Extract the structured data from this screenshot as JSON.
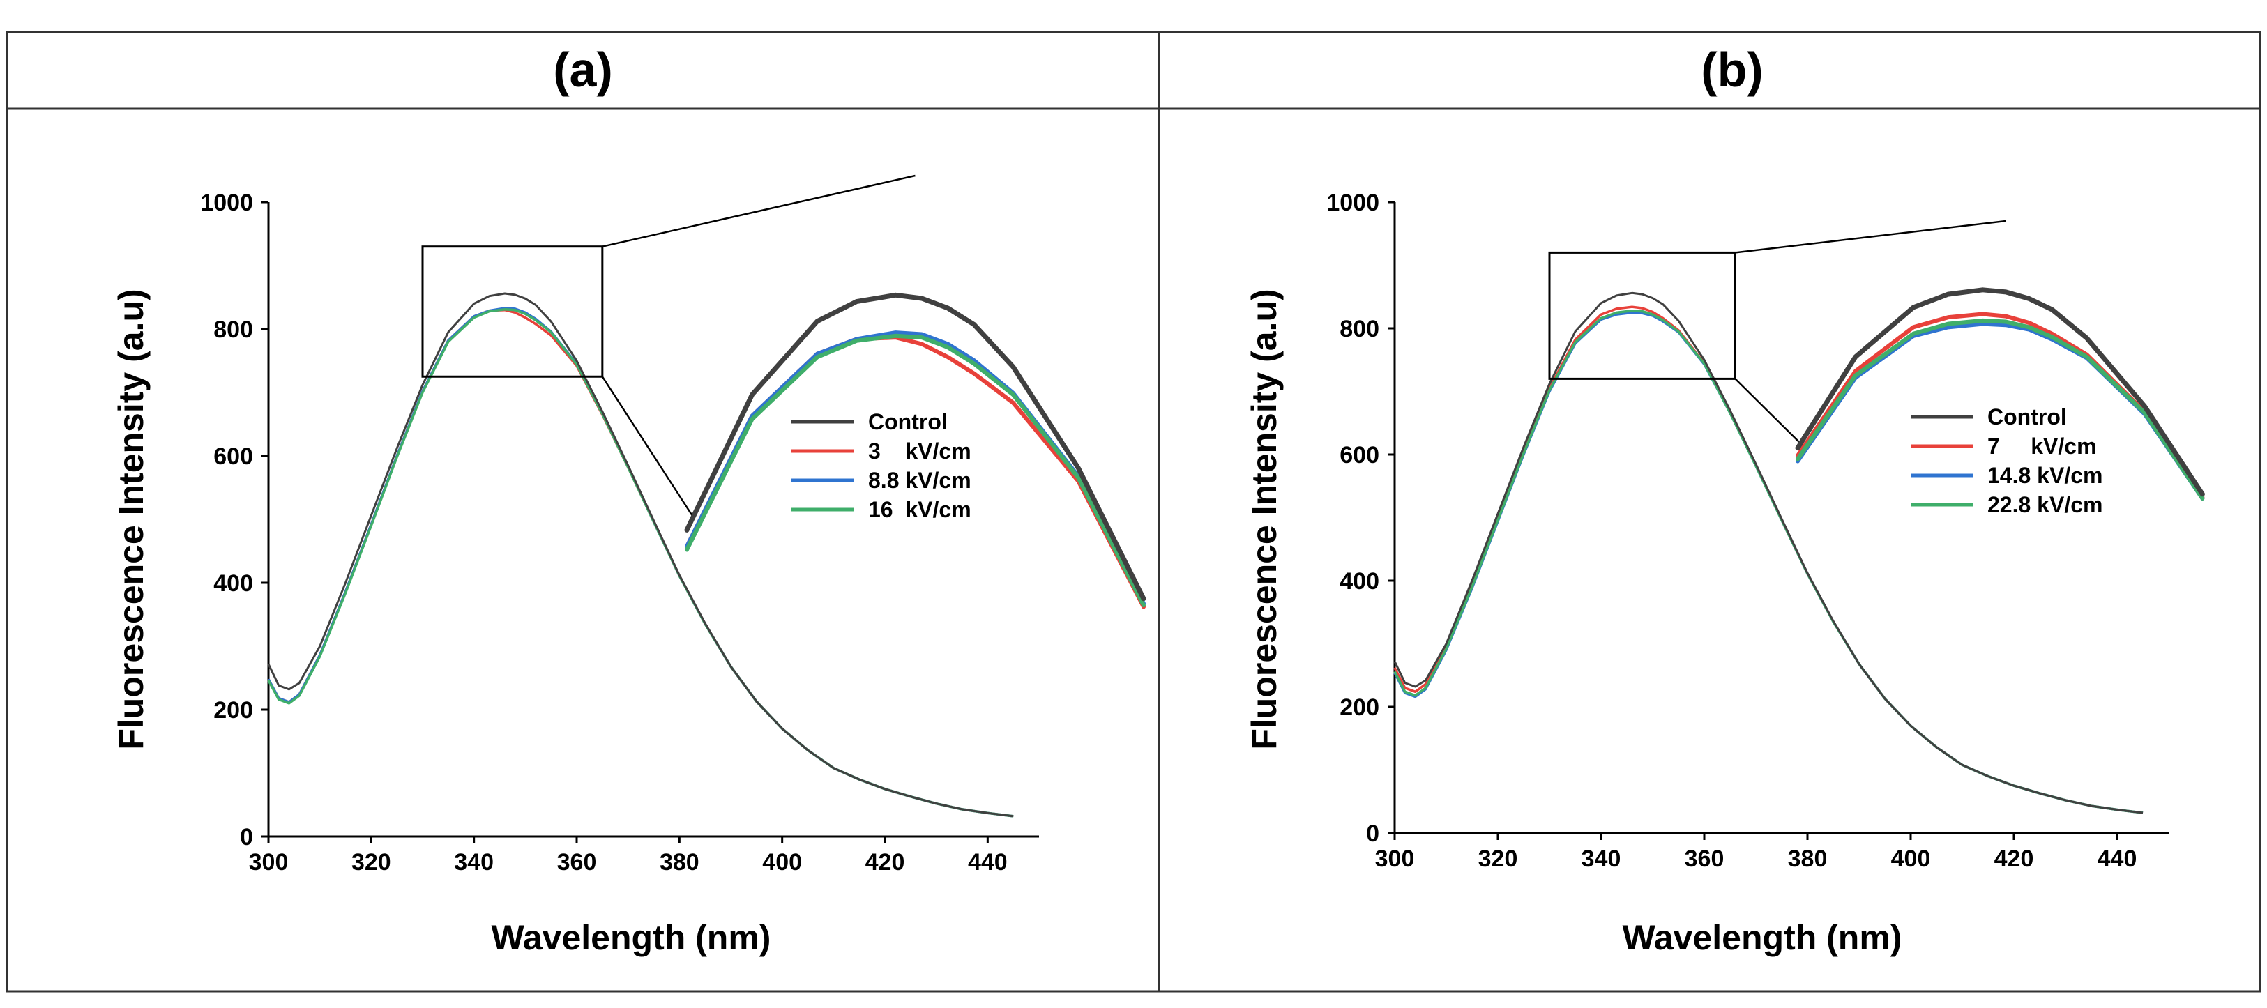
{
  "chart_data": [
    {
      "type": "line",
      "panel_label": "(a)",
      "xlabel": "Wavelength (nm)",
      "ylabel": "Fluorescence Intensity (a.u)",
      "xlim": [
        300,
        450
      ],
      "ylim": [
        0,
        1000
      ],
      "xticks": [
        300,
        320,
        340,
        360,
        380,
        400,
        420,
        440
      ],
      "yticks": [
        0,
        200,
        400,
        600,
        800,
        1000
      ],
      "legend_position": "inside inset, right",
      "grid": false,
      "x": [
        300,
        302,
        304,
        306,
        310,
        315,
        320,
        325,
        330,
        335,
        340,
        343,
        346,
        348,
        350,
        352,
        355,
        360,
        365,
        370,
        375,
        380,
        385,
        390,
        395,
        400,
        405,
        410,
        415,
        420,
        425,
        430,
        435,
        440,
        445
      ],
      "series": [
        {
          "name": "Control",
          "color": "#404040",
          "values": [
            272,
            238,
            232,
            242,
            300,
            400,
            506,
            612,
            712,
            795,
            840,
            852,
            856,
            854,
            848,
            838,
            812,
            750,
            670,
            585,
            498,
            412,
            336,
            268,
            213,
            170,
            136,
            108,
            90,
            75,
            63,
            52,
            43,
            37,
            32
          ]
        },
        {
          "name": "3    kV/cm",
          "color": "#e8413a",
          "values": [
            248,
            218,
            212,
            224,
            286,
            386,
            492,
            600,
            702,
            782,
            820,
            829,
            830,
            826,
            818,
            808,
            790,
            742,
            665,
            582,
            496,
            411,
            335,
            268,
            213,
            170,
            136,
            108,
            90,
            75,
            63,
            52,
            43,
            37,
            32
          ]
        },
        {
          "name": "8.8 kV/cm",
          "color": "#2f74d0",
          "values": [
            248,
            218,
            212,
            224,
            286,
            386,
            492,
            600,
            702,
            782,
            820,
            829,
            833,
            832,
            826,
            816,
            796,
            745,
            667,
            583,
            496,
            411,
            335,
            268,
            213,
            170,
            136,
            108,
            90,
            75,
            63,
            52,
            43,
            37,
            32
          ]
        },
        {
          "name": "16  kV/cm",
          "color": "#3fae6a",
          "values": [
            246,
            216,
            210,
            222,
            284,
            384,
            490,
            598,
            700,
            780,
            818,
            828,
            831,
            830,
            824,
            814,
            795,
            744,
            666,
            582,
            496,
            411,
            335,
            268,
            213,
            170,
            136,
            108,
            90,
            75,
            63,
            52,
            43,
            37,
            32
          ]
        }
      ]
    },
    {
      "type": "line",
      "panel_label": "(b)",
      "xlabel": "Wavelength (nm)",
      "ylabel": "Fluorescence Intensity (a.u)",
      "xlim": [
        300,
        450
      ],
      "ylim": [
        0,
        1000
      ],
      "xticks": [
        300,
        320,
        340,
        360,
        380,
        400,
        420,
        440
      ],
      "yticks": [
        0,
        200,
        400,
        600,
        800,
        1000
      ],
      "legend_position": "inside inset, right",
      "grid": false,
      "x": [
        300,
        302,
        304,
        306,
        310,
        315,
        320,
        325,
        330,
        335,
        340,
        343,
        346,
        348,
        350,
        352,
        355,
        360,
        365,
        370,
        375,
        380,
        385,
        390,
        395,
        400,
        405,
        410,
        415,
        420,
        425,
        430,
        435,
        440,
        445
      ],
      "series": [
        {
          "name": "Control",
          "color": "#404040",
          "values": [
            272,
            238,
            232,
            242,
            300,
            400,
            506,
            612,
            712,
            795,
            840,
            852,
            856,
            854,
            848,
            838,
            812,
            750,
            670,
            585,
            498,
            412,
            336,
            268,
            213,
            170,
            136,
            108,
            90,
            75,
            63,
            52,
            43,
            37,
            32
          ]
        },
        {
          "name": "7     kV/cm",
          "color": "#e8413a",
          "values": [
            262,
            230,
            224,
            236,
            296,
            394,
            500,
            606,
            705,
            782,
            822,
            831,
            834,
            832,
            826,
            816,
            797,
            745,
            667,
            583,
            496,
            411,
            335,
            268,
            213,
            170,
            136,
            108,
            90,
            75,
            63,
            52,
            43,
            37,
            32
          ]
        },
        {
          "name": "14.8 kV/cm",
          "color": "#2f74d0",
          "values": [
            254,
            222,
            216,
            228,
            290,
            388,
            494,
            600,
            700,
            776,
            814,
            822,
            825,
            824,
            820,
            811,
            794,
            743,
            666,
            582,
            496,
            411,
            335,
            268,
            213,
            170,
            136,
            108,
            90,
            75,
            63,
            52,
            43,
            37,
            32
          ]
        },
        {
          "name": "22.8 kV/cm",
          "color": "#3fae6a",
          "values": [
            256,
            224,
            218,
            230,
            292,
            390,
            496,
            602,
            702,
            778,
            816,
            825,
            828,
            827,
            822,
            813,
            795,
            744,
            666,
            582,
            496,
            411,
            335,
            268,
            213,
            170,
            136,
            108,
            90,
            75,
            63,
            52,
            43,
            37,
            32
          ]
        }
      ]
    }
  ]
}
